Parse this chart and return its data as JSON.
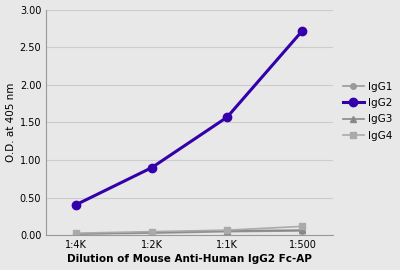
{
  "x_labels": [
    "1:4K",
    "1:2K",
    "1:1K",
    "1:500"
  ],
  "x_positions": [
    0,
    1,
    2,
    3
  ],
  "series": {
    "IgG1": {
      "values": [
        0.02,
        0.03,
        0.05,
        0.06
      ],
      "color": "#999999",
      "marker": "o",
      "linewidth": 1.2,
      "markersize": 4,
      "zorder": 2
    },
    "IgG2": {
      "values": [
        0.41,
        0.9,
        1.57,
        2.72
      ],
      "color": "#3300aa",
      "marker": "o",
      "linewidth": 2.2,
      "markersize": 6,
      "zorder": 3
    },
    "IgG3": {
      "values": [
        0.02,
        0.04,
        0.06,
        0.07
      ],
      "color": "#888888",
      "marker": "^",
      "linewidth": 1.2,
      "markersize": 4,
      "zorder": 2
    },
    "IgG4": {
      "values": [
        0.03,
        0.05,
        0.07,
        0.12
      ],
      "color": "#aaaaaa",
      "marker": "s",
      "linewidth": 1.2,
      "markersize": 4,
      "zorder": 2
    }
  },
  "ylabel": "O.D. at 405 nm",
  "xlabel": "Dilution of Mouse Anti-Human IgG2 Fc-AP",
  "ylim": [
    0.0,
    3.0
  ],
  "yticks": [
    0.0,
    0.5,
    1.0,
    1.5,
    2.0,
    2.5,
    3.0
  ],
  "grid_color": "#cccccc",
  "bg_color": "#e8e8e8",
  "fig_bg_color": "#e8e8e8",
  "legend_order": [
    "IgG1",
    "IgG2",
    "IgG3",
    "IgG4"
  ]
}
